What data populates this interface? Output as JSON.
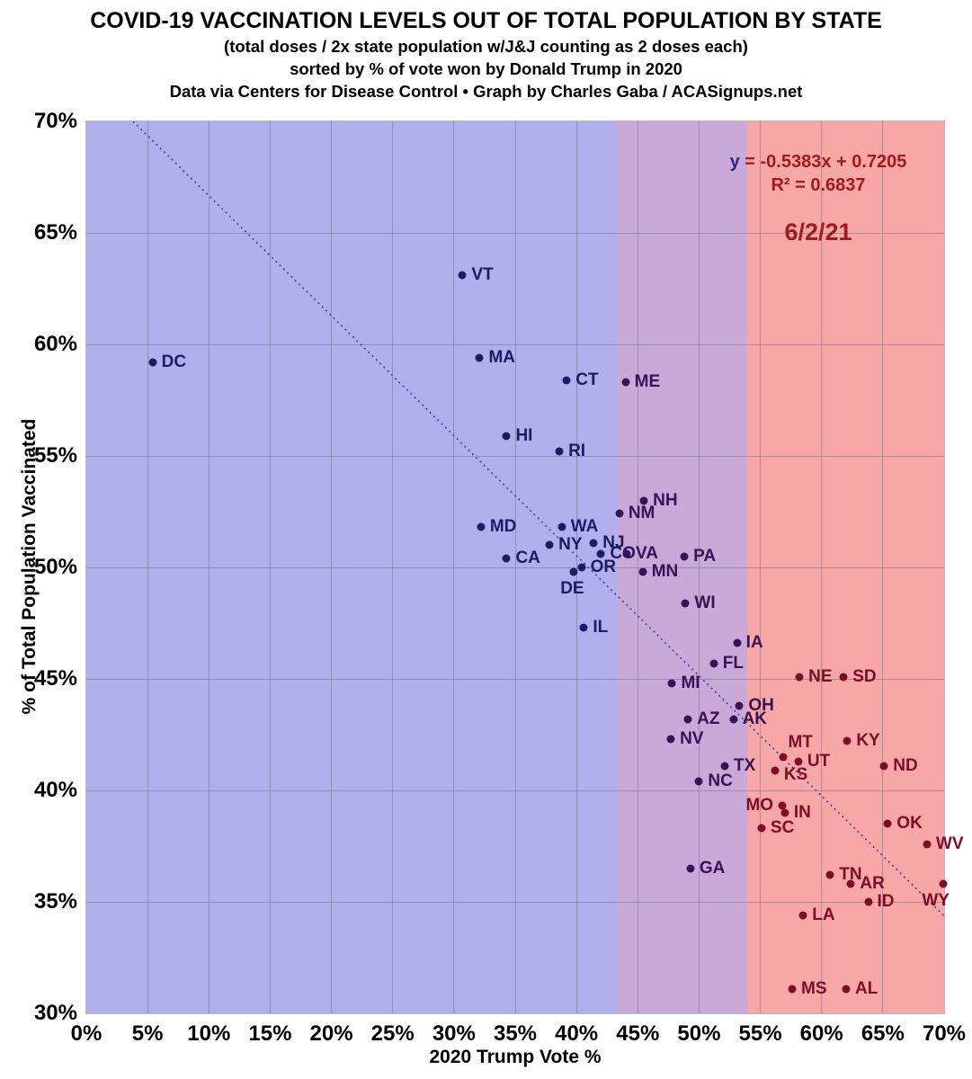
{
  "header": {
    "title": "COVID-19 VACCINATION LEVELS OUT OF TOTAL POPULATION BY STATE",
    "subtitle1": "(total doses / 2x state population w/J&J counting as 2 doses each)",
    "subtitle2": "sorted by % of vote won by Donald Trump in 2020",
    "subtitle3": "Data via Centers for Disease Control • Graph by Charles Gaba / ACASignups.net"
  },
  "annotation": {
    "equation_lhs": "y",
    "equation_rhs": " = -0.5383x + 0.7205",
    "r_squared": "R² = 0.6837",
    "date": "6/2/21"
  },
  "colors": {
    "equation_y": "#32277e",
    "equation_text": "#a11b1b",
    "date_text": "#a11b1b",
    "axis_text": "#000000",
    "trend_line": "#3b3bb0",
    "band_blue": "#b0b0ec",
    "band_purple": "#c9a9d8",
    "band_red": "#f8a7a7",
    "points_blue_zone": "#1b1b66",
    "points_purple_zone": "#3a1058",
    "points_red_zone": "#7d0c28"
  },
  "chart_data": {
    "type": "scatter",
    "title": "COVID-19 VACCINATION LEVELS OUT OF TOTAL POPULATION BY STATE",
    "xlabel": "2020 Trump Vote %",
    "ylabel": "% of Total Population Vaccinated",
    "xlim": [
      0,
      70
    ],
    "ylim": [
      30,
      70
    ],
    "x_tick_step": 5,
    "y_tick_step": 5,
    "grid": true,
    "legend": "none",
    "bands": [
      {
        "name": "blue-states-band",
        "x_range": [
          0,
          43.2
        ],
        "fill": "#b0b0ec",
        "point_color": "#1b1b66"
      },
      {
        "name": "swing-states-band",
        "x_range": [
          43.2,
          53.9
        ],
        "fill": "#c9a9d8",
        "point_color": "#3a1058"
      },
      {
        "name": "red-states-band",
        "x_range": [
          53.9,
          70
        ],
        "fill": "#f8a7a7",
        "point_color": "#7d0c28"
      }
    ],
    "trendline": {
      "slope": -0.5383,
      "intercept": 0.7205,
      "style": "dotted",
      "color": "#3b3bb0"
    },
    "points": [
      {
        "state": "DC",
        "x": 5.4,
        "y": 59.2
      },
      {
        "state": "VT",
        "x": 30.7,
        "y": 63.1
      },
      {
        "state": "MA",
        "x": 32.1,
        "y": 59.4
      },
      {
        "state": "MD",
        "x": 32.2,
        "y": 51.8
      },
      {
        "state": "HI",
        "x": 34.3,
        "y": 55.9
      },
      {
        "state": "CA",
        "x": 34.3,
        "y": 50.4
      },
      {
        "state": "NY",
        "x": 37.8,
        "y": 51.0
      },
      {
        "state": "RI",
        "x": 38.6,
        "y": 55.2
      },
      {
        "state": "WA",
        "x": 38.8,
        "y": 51.8
      },
      {
        "state": "CT",
        "x": 39.2,
        "y": 58.4
      },
      {
        "state": "DE",
        "x": 39.8,
        "y": 49.8,
        "label_pos": "below",
        "dx": -2
      },
      {
        "state": "OR",
        "x": 40.4,
        "y": 50.0
      },
      {
        "state": "IL",
        "x": 40.6,
        "y": 47.3
      },
      {
        "state": "NJ",
        "x": 41.4,
        "y": 51.1
      },
      {
        "state": "CO",
        "x": 42.0,
        "y": 50.6
      },
      {
        "state": "NM",
        "x": 43.5,
        "y": 52.4
      },
      {
        "state": "ME",
        "x": 44.0,
        "y": 58.3
      },
      {
        "state": "VA",
        "x": 44.1,
        "y": 50.6
      },
      {
        "state": "MN",
        "x": 45.4,
        "y": 49.8
      },
      {
        "state": "NH",
        "x": 45.5,
        "y": 53.0
      },
      {
        "state": "NV",
        "x": 47.7,
        "y": 42.3
      },
      {
        "state": "MI",
        "x": 47.8,
        "y": 44.8
      },
      {
        "state": "PA",
        "x": 48.8,
        "y": 50.5
      },
      {
        "state": "WI",
        "x": 48.9,
        "y": 48.4
      },
      {
        "state": "AZ",
        "x": 49.1,
        "y": 43.2
      },
      {
        "state": "GA",
        "x": 49.3,
        "y": 36.5
      },
      {
        "state": "NC",
        "x": 50.0,
        "y": 40.4
      },
      {
        "state": "FL",
        "x": 51.2,
        "y": 45.7
      },
      {
        "state": "TX",
        "x": 52.1,
        "y": 41.1
      },
      {
        "state": "AK",
        "x": 52.8,
        "y": 43.2
      },
      {
        "state": "IA",
        "x": 53.1,
        "y": 46.6
      },
      {
        "state": "OH",
        "x": 53.3,
        "y": 43.8
      },
      {
        "state": "SC",
        "x": 55.1,
        "y": 38.3
      },
      {
        "state": "KS",
        "x": 56.2,
        "y": 40.9,
        "dy": 5
      },
      {
        "state": "MO",
        "x": 56.8,
        "y": 39.3,
        "label_pos": "left"
      },
      {
        "state": "MT",
        "x": 56.9,
        "y": 41.5,
        "label_pos": "above"
      },
      {
        "state": "IN",
        "x": 57.0,
        "y": 39.0
      },
      {
        "state": "MS",
        "x": 57.6,
        "y": 31.1
      },
      {
        "state": "UT",
        "x": 58.1,
        "y": 41.3
      },
      {
        "state": "NE",
        "x": 58.2,
        "y": 45.1
      },
      {
        "state": "LA",
        "x": 58.5,
        "y": 34.4
      },
      {
        "state": "TN",
        "x": 60.7,
        "y": 36.2
      },
      {
        "state": "SD",
        "x": 61.8,
        "y": 45.1
      },
      {
        "state": "AL",
        "x": 62.0,
        "y": 31.1
      },
      {
        "state": "KY",
        "x": 62.1,
        "y": 42.2
      },
      {
        "state": "AR",
        "x": 62.4,
        "y": 35.8
      },
      {
        "state": "ID",
        "x": 63.8,
        "y": 35.0
      },
      {
        "state": "ND",
        "x": 65.1,
        "y": 41.1
      },
      {
        "state": "OK",
        "x": 65.4,
        "y": 38.5
      },
      {
        "state": "WV",
        "x": 68.6,
        "y": 37.6
      },
      {
        "state": "WY",
        "x": 69.9,
        "y": 35.8,
        "label_pos": "below",
        "dx": -8
      }
    ]
  }
}
